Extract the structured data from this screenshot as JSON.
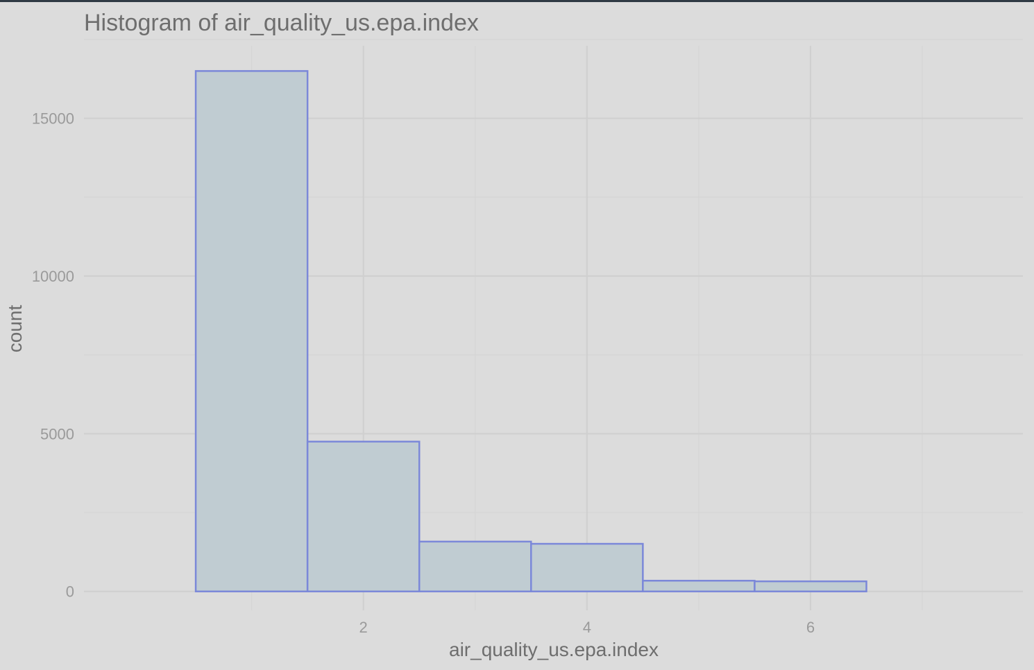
{
  "chart_data": {
    "type": "bar",
    "title": "Histogram of air_quality_us.epa.index",
    "xlabel": "air_quality_us.epa.index",
    "ylabel": "count",
    "bins": [
      {
        "x0": 0.5,
        "x1": 1.5,
        "count": 16500
      },
      {
        "x0": 1.5,
        "x1": 2.5,
        "count": 4750
      },
      {
        "x0": 2.5,
        "x1": 3.5,
        "count": 1580
      },
      {
        "x0": 3.5,
        "x1": 4.5,
        "count": 1510
      },
      {
        "x0": 4.5,
        "x1": 5.5,
        "count": 340
      },
      {
        "x0": 5.5,
        "x1": 6.5,
        "count": 320
      }
    ],
    "xlim": [
      -0.5,
      7.9
    ],
    "ylim": [
      -600,
      17300
    ],
    "x_ticks": [
      2,
      4,
      6
    ],
    "y_ticks": [
      0,
      5000,
      10000,
      15000
    ],
    "grid": true,
    "bar_fill": "#c0ccd2",
    "bar_stroke": "#7b88d9",
    "background": "#dcdcdc",
    "grid_major_color": "#d0d0d0",
    "grid_minor_color": "#d5d5d5"
  }
}
